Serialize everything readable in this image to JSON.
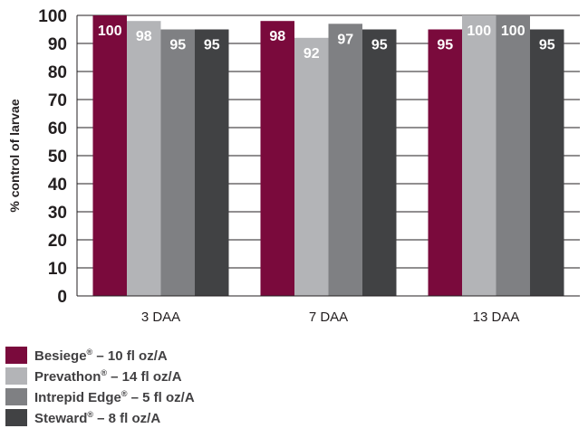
{
  "chart_data": {
    "type": "bar",
    "categories": [
      "3 DAA",
      "7 DAA",
      "13 DAA"
    ],
    "series": [
      {
        "name": "Besiege",
        "mark": "®",
        "suffix": " – 10 fl oz/A",
        "color": "#7a0a3c",
        "values": [
          100,
          98,
          95
        ]
      },
      {
        "name": "Prevathon",
        "mark": "®",
        "suffix": " – 14 fl oz/A",
        "color": "#b3b4b7",
        "values": [
          98,
          92,
          100
        ]
      },
      {
        "name": "Intrepid Edge",
        "mark": "®",
        "suffix": " – 5 fl oz/A",
        "color": "#7f8083",
        "values": [
          95,
          97,
          100
        ]
      },
      {
        "name": "Steward",
        "mark": "®",
        "suffix": " – 8 fl oz/A",
        "color": "#414244",
        "values": [
          95,
          95,
          95
        ]
      }
    ],
    "data_labels": [
      [
        "100",
        "98",
        "95"
      ],
      [
        "98",
        "92",
        "100"
      ],
      [
        "95",
        "97",
        "100"
      ],
      [
        "95",
        "95",
        "95"
      ]
    ],
    "yticks": [
      0,
      10,
      20,
      30,
      40,
      50,
      60,
      70,
      80,
      90,
      100
    ],
    "ylabel": "% control of larvae",
    "xlabel": "",
    "ylim": [
      0,
      100
    ],
    "grid": true,
    "legend_position": "bottom-left"
  }
}
